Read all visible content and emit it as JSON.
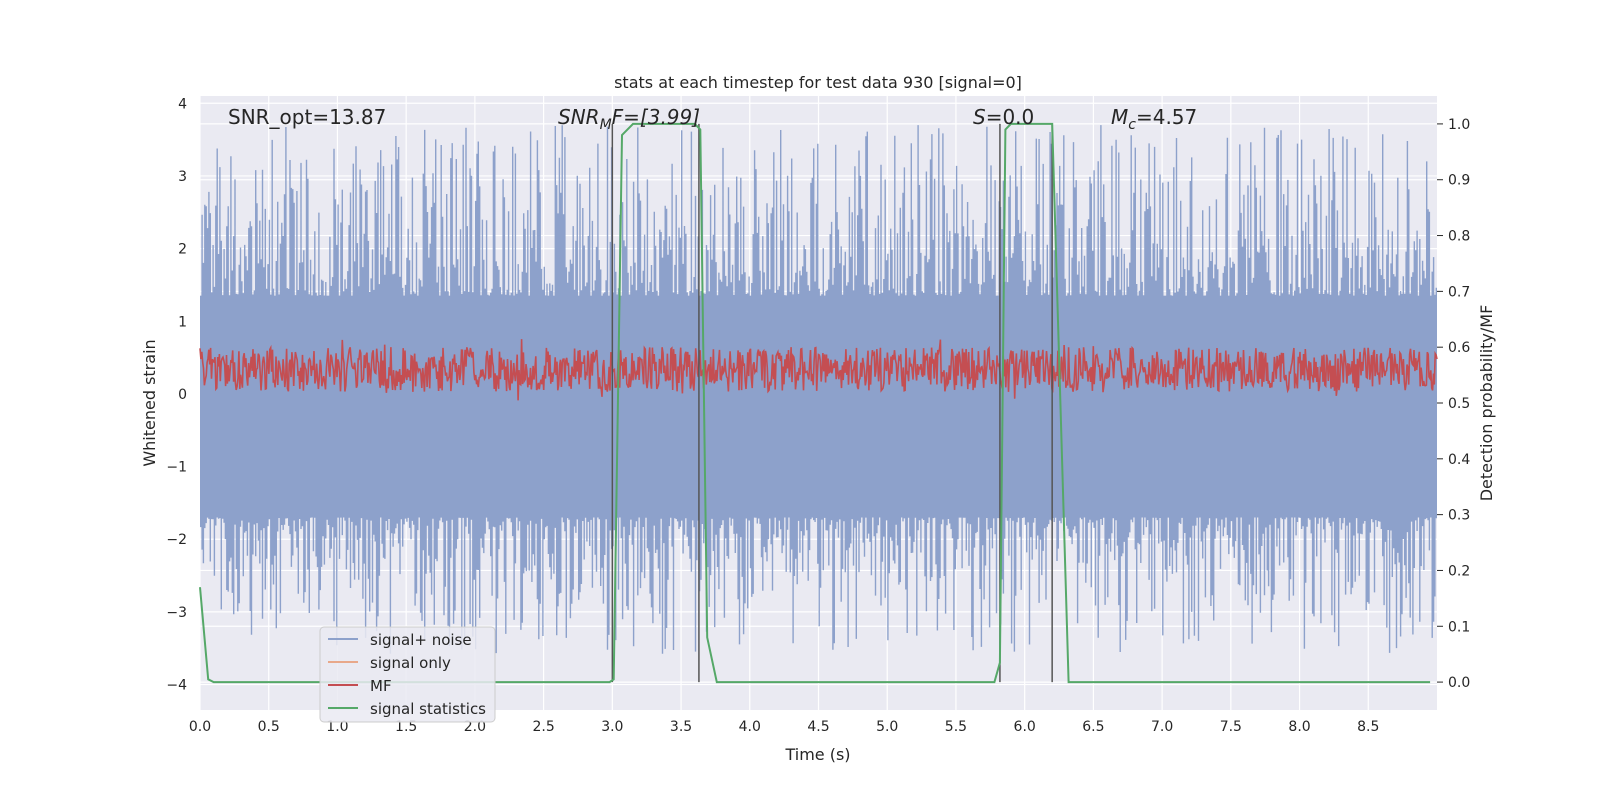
{
  "chart_data": {
    "type": "line",
    "title": "stats at each timestep for test data 930 [signal=0]",
    "xlabel": "Time (s)",
    "ylabel_left": "Whitened strain",
    "ylabel_right": "Detection probability/MF",
    "xlim": [
      0.0,
      9.0
    ],
    "ylim_left": [
      -4.35,
      4.1
    ],
    "ylim_right": [
      -0.05,
      1.05
    ],
    "xticks": [
      "0.0",
      "0.5",
      "1.0",
      "1.5",
      "2.0",
      "2.5",
      "3.0",
      "3.5",
      "4.0",
      "4.5",
      "5.0",
      "5.5",
      "6.0",
      "6.5",
      "7.0",
      "7.5",
      "8.0",
      "8.5"
    ],
    "yticks_left": [
      "−4",
      "−3",
      "−2",
      "−1",
      "0",
      "1",
      "2",
      "3",
      "4"
    ],
    "yticks_right": [
      "0.0",
      "0.1",
      "0.2",
      "0.3",
      "0.4",
      "0.5",
      "0.6",
      "0.7",
      "0.8",
      "0.9",
      "1.0"
    ],
    "grid": true,
    "legend_placement": "lower-left",
    "annotations": {
      "snr_opt": "SNR_opt=13.87",
      "snr_mf_sym": "SNR",
      "snr_mf_sub": "M",
      "snr_mf_rest": "F=[3.99]",
      "s_sym": "S",
      "s_rest": "=0.0",
      "mc_sym": "M",
      "mc_sub": "c",
      "mc_rest": "=4.57"
    },
    "vertical_markers": [
      3.0,
      3.63,
      5.82,
      6.2
    ],
    "series": [
      {
        "name": "signal+ noise",
        "axis": "left",
        "color": "#8da1cb",
        "envelope_core": [
          -1.7,
          1.35
        ],
        "spike_range": [
          -3.6,
          3.7
        ]
      },
      {
        "name": "signal only",
        "axis": "left",
        "color": "#e8a88a",
        "values": []
      },
      {
        "name": "MF",
        "axis": "right",
        "color": "#c44e52",
        "band": [
          0.52,
          0.6
        ]
      },
      {
        "name": "signal statistics",
        "axis": "right",
        "color": "#55a868",
        "x": [
          0.0,
          0.06,
          0.1,
          2.98,
          3.01,
          3.07,
          3.15,
          3.6,
          3.64,
          3.69,
          3.76,
          5.78,
          5.82,
          5.86,
          5.9,
          6.2,
          6.26,
          6.32,
          8.95
        ],
        "y": [
          0.17,
          0.005,
          0.0,
          0.0,
          0.005,
          0.98,
          1.0,
          1.0,
          0.99,
          0.08,
          0.0,
          0.0,
          0.035,
          0.99,
          1.0,
          1.0,
          0.5,
          0.0,
          0.0
        ]
      }
    ]
  }
}
